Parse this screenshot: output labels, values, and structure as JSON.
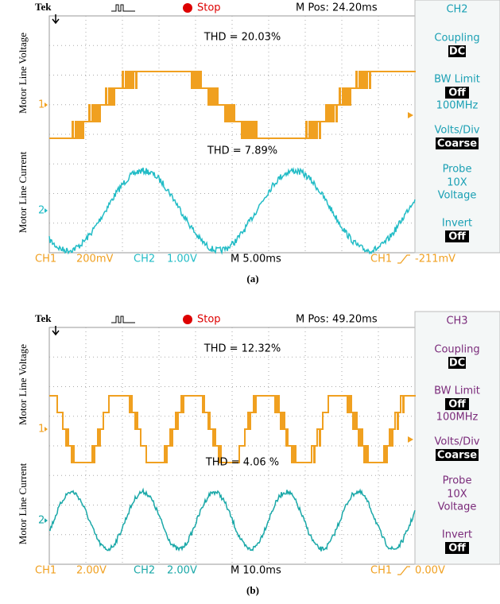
{
  "panels": [
    {
      "brand": "Tek",
      "status": "Stop",
      "m_pos": "M Pos: 24.20ms",
      "channel": "CH2",
      "menu": [
        {
          "title": "Coupling",
          "value": "DC"
        },
        {
          "title": "BW Limit",
          "value": "Off",
          "lines": [
            "100MHz"
          ]
        },
        {
          "title": "Volts/Div",
          "value": "Coarse"
        },
        {
          "title": "Probe",
          "lines": [
            "10X",
            "Voltage"
          ]
        },
        {
          "title": "Invert",
          "value": "Off"
        }
      ],
      "ylabel_top": "Motor Line Voltage",
      "ylabel_bottom": "Motor Line Current",
      "marker_1": "1",
      "marker_2": "2",
      "thd_voltage": "THD = 20.03%",
      "thd_current": "THD = 7.89%",
      "footer": {
        "ch1_label": "CH1",
        "ch1_scale": "200mV",
        "ch2_label": "CH2",
        "ch2_scale": "1.00V",
        "timebase": "M 5.00ms",
        "trigger_source": "CH1",
        "trigger_level": "-211mV"
      },
      "caption": "(a)",
      "ch1_color": "#f0a020",
      "ch2_color": "#22bcc6",
      "menu_color": "#1aa0b4"
    },
    {
      "brand": "Tek",
      "status": "Stop",
      "m_pos": "M Pos: 49.20ms",
      "channel": "CH3",
      "menu": [
        {
          "title": "Coupling",
          "value": "DC"
        },
        {
          "title": "BW Limit",
          "value": "Off",
          "lines": [
            "100MHz"
          ]
        },
        {
          "title": "Volts/Div",
          "value": "Coarse"
        },
        {
          "title": "Probe",
          "lines": [
            "10X",
            "Voltage"
          ]
        },
        {
          "title": "Invert",
          "value": "Off"
        }
      ],
      "ylabel_top": "Motor Line Voltage",
      "ylabel_bottom": "Motor Line Current",
      "marker_1": "1",
      "marker_2": "2",
      "thd_voltage": "THD = 12.32%",
      "thd_current": "THD = 4.06 %",
      "footer": {
        "ch1_label": "CH1",
        "ch1_scale": "2.00V",
        "ch2_label": "CH2",
        "ch2_scale": "2.00V",
        "timebase": "M 10.0ms",
        "trigger_source": "CH1",
        "trigger_level": "0.00V"
      },
      "caption": "(b)",
      "ch1_color": "#f0a020",
      "ch2_color": "#1aa8a8",
      "menu_color": "#7a2a7a"
    }
  ]
}
